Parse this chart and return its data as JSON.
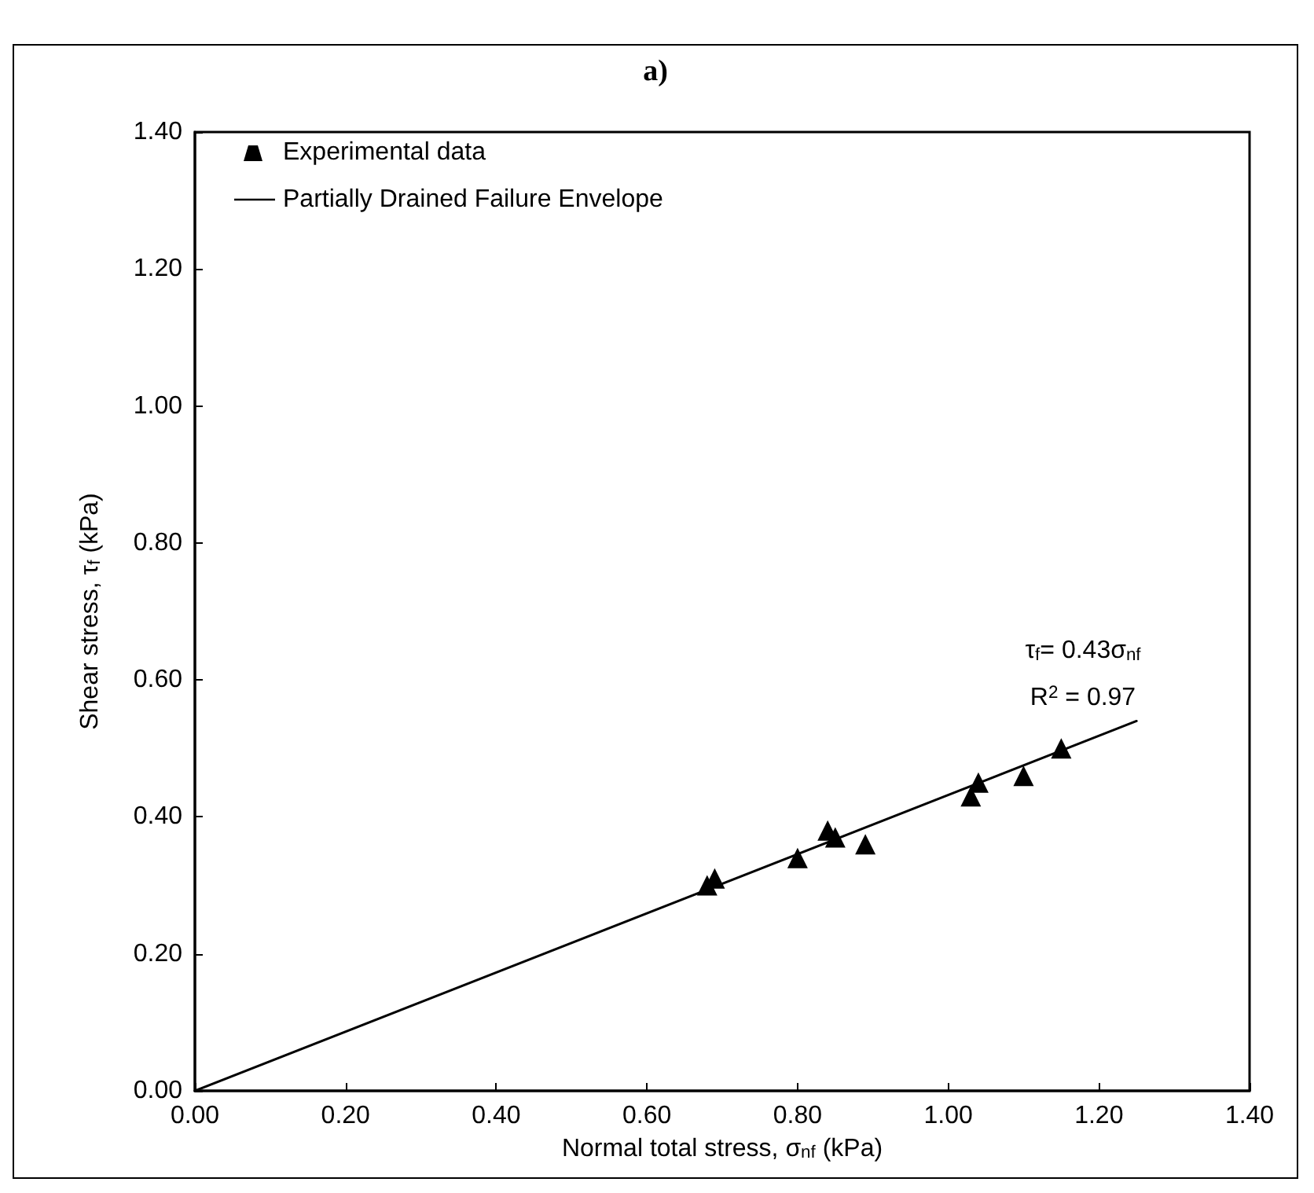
{
  "chart_data": {
    "type": "scatter",
    "title": "a)",
    "xlabel": "Normal total stress, σ$_{nf}$ (kPa)",
    "ylabel": "Shear stress, τ$_{f}$ (kPa)",
    "x": [
      0.68,
      0.69,
      0.8,
      0.84,
      0.85,
      0.89,
      1.03,
      1.04,
      1.1,
      1.15
    ],
    "series": [
      {
        "name": "Experimental data",
        "color": "#000000",
        "marker": "triangle",
        "values": [
          0.3,
          0.31,
          0.34,
          0.38,
          0.37,
          0.36,
          0.43,
          0.45,
          0.46,
          0.5
        ]
      },
      {
        "name": "Partially Drained Failure Envelope",
        "type": "line",
        "color": "#000000",
        "marker": "none",
        "line_style": "solid",
        "x": [
          0,
          1.25
        ],
        "values": [
          0,
          0.54
        ]
      }
    ],
    "xlim": [
      0,
      1.4
    ],
    "ylim": [
      0,
      1.4
    ],
    "xticks": [
      {
        "value": 0,
        "label": "0.00"
      },
      {
        "value": 0.2,
        "label": "0.20"
      },
      {
        "value": 0.4,
        "label": "0.40"
      },
      {
        "value": 0.6,
        "label": "0.60"
      },
      {
        "value": 0.8,
        "label": "0.80"
      },
      {
        "value": 1.0,
        "label": "1.00"
      },
      {
        "value": 1.2,
        "label": "1.20"
      },
      {
        "value": 1.4,
        "label": "1.40"
      }
    ],
    "yticks": [
      {
        "value": 0,
        "label": "0.00"
      },
      {
        "value": 0.2,
        "label": "0.20"
      },
      {
        "value": 0.4,
        "label": "0.40"
      },
      {
        "value": 0.6,
        "label": "0.60"
      },
      {
        "value": 0.8,
        "label": "0.80"
      },
      {
        "value": 1.0,
        "label": "1.00"
      },
      {
        "value": 1.2,
        "label": "1.20"
      },
      {
        "value": 1.4,
        "label": "1.40"
      }
    ],
    "annotations": [
      "τ$_{f}$= 0.43σ$_{nf}$",
      "R$^{2}$ = 0.97"
    ],
    "grid": false,
    "legend": "top left"
  }
}
